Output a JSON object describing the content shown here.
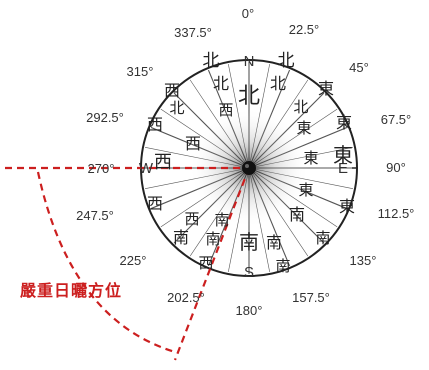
{
  "degrees": [
    "0°",
    "22.5°",
    "45°",
    "67.5°",
    "90°",
    "112.5°",
    "135°",
    "157.5°",
    "180°",
    "202.5°",
    "225°",
    "247.5°",
    "270°",
    "292.5°",
    "315°",
    "337.5°"
  ],
  "cardinals": {
    "north": "N",
    "east": "E",
    "south": "S",
    "west": "W"
  },
  "direction_chars": [
    "北",
    "北",
    "北",
    "北",
    "北",
    "北",
    "北",
    "東",
    "東",
    "東",
    "東",
    "東",
    "東",
    "東",
    "南",
    "南",
    "南",
    "南",
    "南",
    "南",
    "南",
    "南",
    "西",
    "西",
    "西",
    "西",
    "西",
    "西",
    "西",
    "西"
  ],
  "zone_label": "嚴重日曬方位",
  "colors": {
    "accent": "#cc1f1f",
    "ring": "#222222",
    "text": "#333333"
  }
}
